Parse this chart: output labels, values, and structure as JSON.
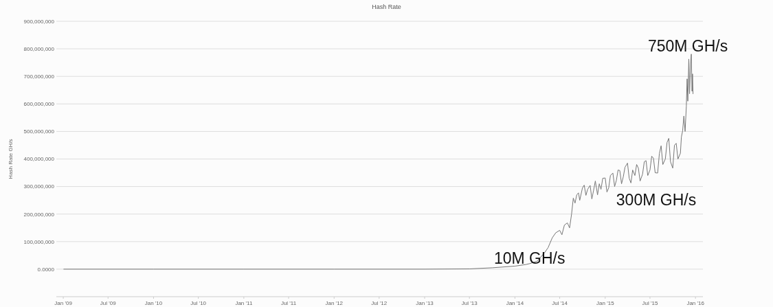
{
  "chart_data": {
    "type": "line",
    "title": "Hash Rate",
    "ylabel": "Hash Rate GH/s",
    "xlim": [
      "2008-12-04",
      "2016-01-31"
    ],
    "ylim": [
      -100000000,
      900000000
    ],
    "xticks": [
      {
        "value": "2009-01-01",
        "label": "Jan '09"
      },
      {
        "value": "2009-07-01",
        "label": "Jul '09"
      },
      {
        "value": "2010-01-01",
        "label": "Jan '10"
      },
      {
        "value": "2010-07-01",
        "label": "Jul '10"
      },
      {
        "value": "2011-01-01",
        "label": "Jan '11"
      },
      {
        "value": "2011-07-01",
        "label": "Jul '11"
      },
      {
        "value": "2012-01-01",
        "label": "Jan '12"
      },
      {
        "value": "2012-07-01",
        "label": "Jul '12"
      },
      {
        "value": "2013-01-01",
        "label": "Jan '13"
      },
      {
        "value": "2013-07-01",
        "label": "Jul '13"
      },
      {
        "value": "2014-01-01",
        "label": "Jan '14"
      },
      {
        "value": "2014-07-01",
        "label": "Jul '14"
      },
      {
        "value": "2015-01-01",
        "label": "Jan '15"
      },
      {
        "value": "2015-07-01",
        "label": "Jul '15"
      },
      {
        "value": "2016-01-01",
        "label": "Jan '16"
      }
    ],
    "yticks": [
      {
        "value": 0,
        "label": "0.0000"
      },
      {
        "value": 100000000,
        "label": "100,000,000"
      },
      {
        "value": 200000000,
        "label": "200,000,000"
      },
      {
        "value": 300000000,
        "label": "300,000,000"
      },
      {
        "value": 400000000,
        "label": "400,000,000"
      },
      {
        "value": 500000000,
        "label": "500,000,000"
      },
      {
        "value": 600000000,
        "label": "600,000,000"
      },
      {
        "value": 700000000,
        "label": "700,000,000"
      },
      {
        "value": 800000000,
        "label": "800,000,000"
      },
      {
        "value": 900000000,
        "label": "900,000,000"
      }
    ],
    "grid": "y",
    "marker": "none",
    "line_style": "solid",
    "annotations": [
      {
        "text": "10M GH/s",
        "x": "2014-03-01",
        "y": 10000000
      },
      "300M GH/s",
      {
        "text": "750M GH/s",
        "x": "2015-12-01",
        "y": 750000000
      }
    ],
    "series": [
      {
        "color": "#777777",
        "x": [
          "2009-01-03",
          "2010-01-01",
          "2011-01-01",
          "2012-01-01",
          "2013-01-01",
          "2013-07-01",
          "2013-10-01",
          "2014-01-01",
          "2014-02-15",
          "2014-03-01",
          "2014-04-01",
          "2014-05-01",
          "2014-05-15",
          "2014-06-01",
          "2014-06-15",
          "2014-07-01",
          "2014-07-10",
          "2014-07-20",
          "2014-08-01",
          "2014-08-10",
          "2014-08-18",
          "2014-08-25",
          "2014-09-01",
          "2014-09-08",
          "2014-09-15",
          "2014-09-20",
          "2014-10-01",
          "2014-10-08",
          "2014-10-15",
          "2014-10-22",
          "2014-11-01",
          "2014-11-08",
          "2014-11-15",
          "2014-11-22",
          "2014-12-01",
          "2014-12-08",
          "2014-12-15",
          "2014-12-22",
          "2015-01-01",
          "2015-01-08",
          "2015-01-15",
          "2015-01-22",
          "2015-02-01",
          "2015-02-08",
          "2015-02-15",
          "2015-02-22",
          "2015-03-01",
          "2015-03-08",
          "2015-03-15",
          "2015-03-22",
          "2015-04-01",
          "2015-04-08",
          "2015-04-15",
          "2015-04-22",
          "2015-05-01",
          "2015-05-08",
          "2015-05-15",
          "2015-05-22",
          "2015-06-01",
          "2015-06-08",
          "2015-06-15",
          "2015-06-22",
          "2015-07-01",
          "2015-07-08",
          "2015-07-15",
          "2015-07-22",
          "2015-08-01",
          "2015-08-08",
          "2015-08-15",
          "2015-08-22",
          "2015-09-01",
          "2015-09-08",
          "2015-09-15",
          "2015-09-22",
          "2015-10-01",
          "2015-10-08",
          "2015-10-15",
          "2015-10-22",
          "2015-11-01",
          "2015-11-05",
          "2015-11-10",
          "2015-11-15",
          "2015-11-20",
          "2015-11-25",
          "2015-11-28",
          "2015-12-01",
          "2015-12-05",
          "2015-12-08",
          "2015-12-12",
          "2015-12-15",
          "2015-12-18",
          "2015-12-20",
          "2015-12-22"
        ],
        "values": [
          0,
          0,
          0,
          0,
          0,
          1000000,
          5000000,
          11000000,
          17000000,
          20000000,
          29000000,
          60000000,
          78000000,
          114000000,
          132000000,
          141000000,
          125000000,
          160000000,
          168000000,
          150000000,
          200000000,
          258000000,
          240000000,
          270000000,
          277000000,
          250000000,
          295000000,
          305000000,
          268000000,
          290000000,
          304000000,
          255000000,
          286000000,
          320000000,
          270000000,
          310000000,
          290000000,
          330000000,
          331000000,
          280000000,
          295000000,
          340000000,
          349000000,
          300000000,
          322000000,
          360000000,
          358000000,
          310000000,
          335000000,
          370000000,
          385000000,
          330000000,
          313000000,
          360000000,
          340000000,
          380000000,
          367000000,
          320000000,
          345000000,
          390000000,
          394000000,
          340000000,
          360000000,
          410000000,
          403000000,
          350000000,
          349000000,
          420000000,
          448000000,
          380000000,
          400000000,
          460000000,
          475000000,
          390000000,
          367000000,
          450000000,
          457000000,
          400000000,
          421000000,
          480000000,
          502000000,
          556000000,
          500000000,
          592000000,
          691000000,
          610000000,
          763000000,
          637000000,
          745000000,
          781000000,
          646000000,
          709000000,
          637000000
        ]
      }
    ]
  }
}
